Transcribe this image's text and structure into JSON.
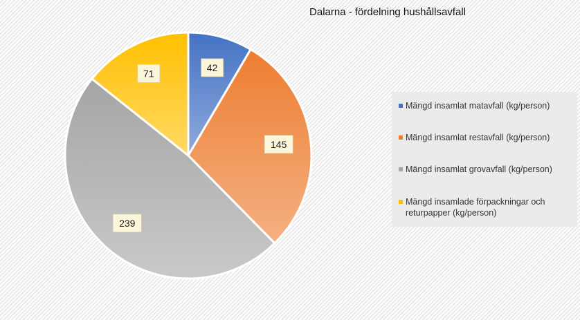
{
  "chart_data": {
    "type": "pie",
    "title": "Dalarna - fördelning hushållsavfall",
    "categories": [
      "Mängd insamlat matavfall (kg/person)",
      "Mängd insamlat restavfall (kg/person)",
      "Mängd insamlat grovavfall (kg/person)",
      "Mängd insamlade förpackningar och returpapper (kg/person)"
    ],
    "values": [
      42,
      145,
      239,
      71
    ],
    "data_labels": [
      "42",
      "145",
      "239",
      "71"
    ],
    "colors": [
      "#4472c4",
      "#ed7d31",
      "#a5a5a5",
      "#ffc000"
    ],
    "legend_position": "right"
  }
}
